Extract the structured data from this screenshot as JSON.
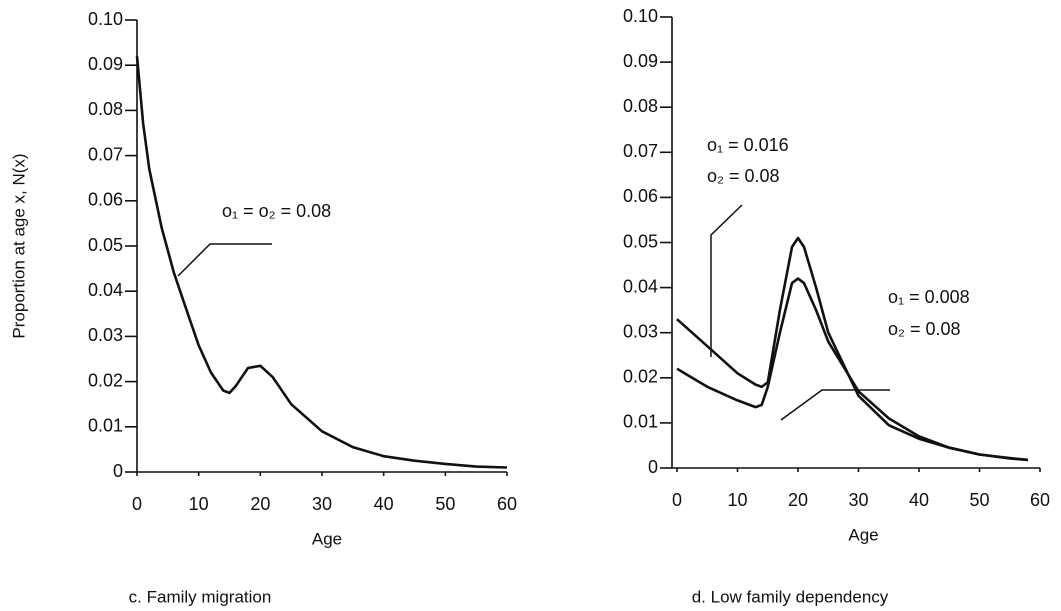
{
  "chart_data": [
    {
      "type": "line",
      "y_label": "Proportion at age x, N(x)",
      "x_label": "Age",
      "caption": "c. Family migration",
      "x": [
        0,
        1,
        2,
        4,
        6,
        8,
        10,
        12,
        14,
        15,
        16,
        18,
        20,
        22,
        25,
        30,
        35,
        40,
        45,
        50,
        55,
        60
      ],
      "series": [
        {
          "color": "#111111",
          "values": [
            0.092,
            0.077,
            0.067,
            0.054,
            0.044,
            0.036,
            0.028,
            0.022,
            0.018,
            0.0175,
            0.019,
            0.023,
            0.0235,
            0.021,
            0.015,
            0.009,
            0.0055,
            0.0035,
            0.0025,
            0.0018,
            0.0012,
            0.001
          ]
        }
      ],
      "annotations": [
        "o₁ = o₂ = 0.08"
      ],
      "xlim": [
        0,
        60
      ],
      "xticks": [
        0,
        10,
        20,
        30,
        40,
        50,
        60
      ],
      "ylim": [
        0,
        0.1
      ],
      "yticks": [
        0,
        0.01,
        0.02,
        0.03,
        0.04,
        0.05,
        0.06,
        0.07,
        0.08,
        0.09,
        {
          "value": 0.1,
          "label": "0.10"
        }
      ]
    },
    {
      "type": "line",
      "x_label": "Age",
      "caption": "d. Low family dependency",
      "x": [
        0,
        5,
        10,
        13,
        14,
        15,
        17,
        19,
        20,
        21,
        23,
        25,
        30,
        35,
        40,
        45,
        50,
        55,
        58
      ],
      "series": [
        {
          "color": "#111111",
          "values": [
            0.033,
            0.027,
            0.021,
            0.0185,
            0.018,
            0.019,
            0.035,
            0.049,
            0.051,
            0.049,
            0.04,
            0.03,
            0.016,
            0.0095,
            0.0065,
            0.0045,
            0.003,
            0.0022,
            0.0018
          ]
        },
        {
          "color": "#111111",
          "values": [
            0.022,
            0.018,
            0.015,
            0.0135,
            0.014,
            0.018,
            0.03,
            0.041,
            0.042,
            0.041,
            0.035,
            0.028,
            0.017,
            0.011,
            0.007,
            0.0045,
            0.003,
            0.0021,
            0.0018
          ]
        }
      ],
      "annotations": [
        "o₁ = 0.016",
        "o₂ = 0.08",
        "o₁ = 0.008",
        "o₂ = 0.08"
      ],
      "xlim": [
        0,
        60
      ],
      "xticks": [
        0,
        10,
        20,
        30,
        40,
        50,
        60
      ],
      "ylim": [
        0,
        0.1
      ],
      "yticks": [
        0,
        0.01,
        0.02,
        0.03,
        0.04,
        0.05,
        0.06,
        0.07,
        0.08,
        0.09,
        {
          "value": 0.1,
          "label": "0.10"
        }
      ]
    }
  ]
}
